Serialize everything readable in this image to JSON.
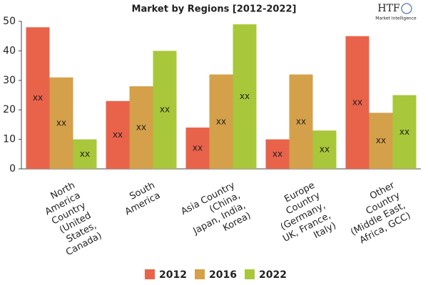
{
  "logo": {
    "title": "HTF",
    "subtitle": "Market Intelligence"
  },
  "chart_data": {
    "type": "bar",
    "title": "Market by Regions [2012-2022]",
    "categories": [
      "North\nAmerica\nCountry\n(United\nStates,\nCanada)",
      "South\nAmerica",
      "Asia Country\n(China,\nJapan, India,\nKorea)",
      "Europe\nCountry\n(Germany,\nUK, France,\nItaly)",
      "Other\nCountry\n(Middle East,\nAfrica, GCC)"
    ],
    "series": [
      {
        "name": "2012",
        "color": "#e8634a",
        "values": [
          48,
          23,
          14,
          10,
          45
        ],
        "value_labels": [
          "xx",
          "xx",
          "xx",
          "xx",
          "xx"
        ]
      },
      {
        "name": "2016",
        "color": "#d4a04a",
        "values": [
          31,
          28,
          32,
          32,
          19
        ],
        "value_labels": [
          "xx",
          "xx",
          "xx",
          "xx",
          "xx"
        ]
      },
      {
        "name": "2022",
        "color": "#a8c73a",
        "values": [
          10,
          40,
          49,
          13,
          25
        ],
        "value_labels": [
          "xx",
          "xx",
          "xx",
          "xx",
          "xx"
        ]
      }
    ],
    "ylim": [
      0,
      50
    ],
    "yticks": [
      0,
      10,
      20,
      30,
      40,
      50
    ],
    "grid": false,
    "legend": "bottom"
  }
}
